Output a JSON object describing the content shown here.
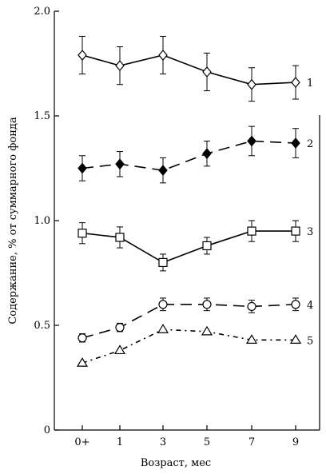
{
  "chart_data": {
    "type": "line",
    "title": "",
    "xlabel": "Возраст, мес",
    "ylabel": "Содержание, % от суммарного фонда",
    "categories": [
      "0+",
      "1",
      "3",
      "5",
      "7",
      "9"
    ],
    "ylim": [
      0,
      2.0
    ],
    "yticks": [
      "0",
      "0.5",
      "1.0",
      "1.5",
      "2.0"
    ],
    "grid": false,
    "legend": "series labels at right end of each line",
    "series": [
      {
        "name": "1",
        "marker": "diamond-open",
        "line": "solid",
        "values": [
          1.79,
          1.74,
          1.79,
          1.71,
          1.65,
          1.66
        ],
        "errors": [
          0.09,
          0.09,
          0.09,
          0.09,
          0.08,
          0.08
        ]
      },
      {
        "name": "2",
        "marker": "diamond-filled",
        "line": "long-dash",
        "values": [
          1.25,
          1.27,
          1.24,
          1.32,
          1.38,
          1.37
        ],
        "errors": [
          0.06,
          0.06,
          0.06,
          0.06,
          0.07,
          0.07
        ]
      },
      {
        "name": "3",
        "marker": "square-open",
        "line": "solid",
        "values": [
          0.94,
          0.92,
          0.8,
          0.88,
          0.95,
          0.95
        ],
        "errors": [
          0.05,
          0.05,
          0.04,
          0.04,
          0.05,
          0.05
        ]
      },
      {
        "name": "4",
        "marker": "circle-open",
        "line": "long-dash",
        "values": [
          0.44,
          0.49,
          0.6,
          0.6,
          0.59,
          0.6
        ],
        "errors": [
          0.02,
          0.02,
          0.03,
          0.03,
          0.03,
          0.03
        ]
      },
      {
        "name": "5",
        "marker": "triangle-open",
        "line": "dash-dot",
        "values": [
          0.32,
          0.38,
          0.48,
          0.47,
          0.43,
          0.43
        ],
        "errors": [
          0,
          0,
          0,
          0,
          0,
          0
        ]
      }
    ]
  }
}
